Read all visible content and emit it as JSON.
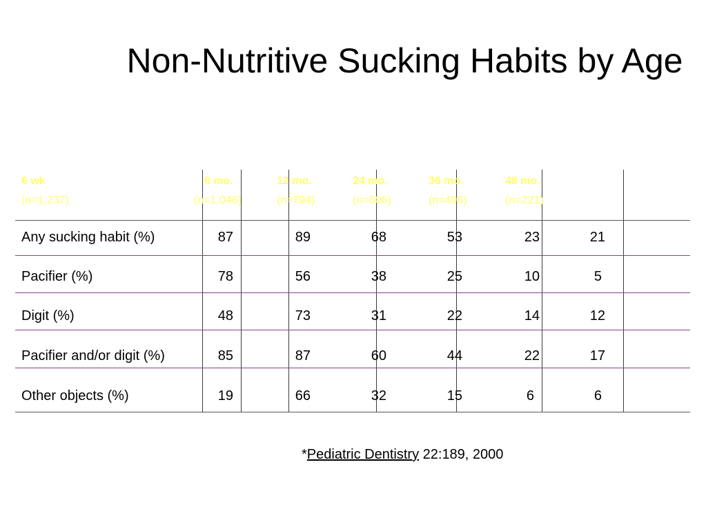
{
  "title": "Non-Nutritive Sucking Habits by Age",
  "table": {
    "columns": [
      {
        "label": "6 wk",
        "n": "(n=1,237)"
      },
      {
        "label": "6 mo.",
        "n": "(n=1,046)"
      },
      {
        "label": "12 mo.",
        "n": "(n=794)"
      },
      {
        "label": "24  mo.",
        "n": "(n=606)"
      },
      {
        "label": "36 mo.",
        "n": "(n=496)"
      },
      {
        "label": "48 mo.",
        "n": "(n=221)"
      }
    ],
    "rows": [
      {
        "label": "Any sucking habit (%)",
        "values": [
          "87",
          "89",
          "68",
          "53",
          "23",
          "21"
        ]
      },
      {
        "label": "Pacifier (%)",
        "values": [
          "78",
          "56",
          "38",
          "25",
          "10",
          "5"
        ]
      },
      {
        "label": "Digit (%)",
        "values": [
          "48",
          "73",
          "31",
          "22",
          "14",
          "12"
        ]
      },
      {
        "label": "Pacifier and/or digit (%)",
        "values": [
          "85",
          "87",
          "60",
          "44",
          "22",
          "17"
        ]
      },
      {
        "label": "Other objects (%)",
        "values": [
          "19",
          "66",
          "32",
          "15",
          "6",
          "6"
        ]
      }
    ],
    "header_color": "#ffff66",
    "row_divider_color": "#8a3e8a"
  },
  "citation": {
    "prefix": "*",
    "journal": "Pediatric Dentistry",
    "reference": " 22:189, 2000"
  }
}
